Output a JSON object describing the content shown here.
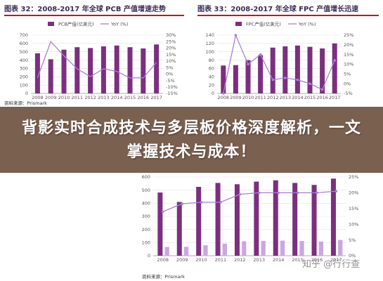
{
  "banner": {
    "text": "背影实时合成技术与多层板价格深度解析，一文掌握技术与成本！"
  },
  "watermark": "知乎 @行行查",
  "colors": {
    "bar": "#7b2f7f",
    "bar_light": "#c9a7e2",
    "line": "#a97fd6"
  },
  "chart_data": [
    {
      "id": "left",
      "type": "bar+line",
      "title": "图表 32：2008-2017 年全球 PCB 产值增速走势",
      "categories": [
        "2008",
        "2009",
        "2010",
        "2011",
        "2012",
        "2013",
        "2014",
        "2015",
        "2016",
        "2017"
      ],
      "series": [
        {
          "name": "PCB产值(亿美元)",
          "type": "bar",
          "axis": "left",
          "values": [
            482,
            410,
            525,
            555,
            545,
            565,
            575,
            555,
            540,
            588
          ]
        },
        {
          "name": "YoY (%)",
          "type": "line",
          "axis": "right",
          "values": [
            -3,
            25,
            14,
            4,
            -2,
            4,
            2,
            -3,
            -3,
            9
          ]
        }
      ],
      "ylim_left": [
        0,
        700
      ],
      "ylim_right": [
        -15,
        30
      ],
      "yticks_left": [
        "0",
        "100",
        "200",
        "300",
        "400",
        "500",
        "600",
        "700"
      ],
      "yticks_right": [
        "-15%",
        "-10%",
        "-5%",
        "0%",
        "5%",
        "10%",
        "15%",
        "20%",
        "25%",
        "30%"
      ],
      "source": "资料来源：Prismark"
    },
    {
      "id": "right",
      "type": "bar+line",
      "title": "图表 33：2008-2017 年全球 FPC 产值增长迅速",
      "categories": [
        "2008",
        "2009",
        "2010",
        "2011",
        "2012",
        "2013",
        "2014",
        "2015",
        "2016",
        "2017"
      ],
      "series": [
        {
          "name": "FPC产值(亿美元)",
          "type": "bar",
          "axis": "left",
          "values": [
            67,
            68,
            80,
            92,
            110,
            113,
            115,
            112,
            108,
            120
          ]
        },
        {
          "name": "YoY (%)",
          "type": "line",
          "axis": "right",
          "values": [
            -5,
            25,
            10,
            15,
            2,
            3,
            2,
            0,
            -3,
            12
          ]
        }
      ],
      "ylim_left": [
        0,
        140
      ],
      "ylim_right": [
        -5,
        25
      ],
      "yticks_left": [
        "0",
        "20",
        "40",
        "60",
        "80",
        "100",
        "120",
        "140"
      ],
      "yticks_right": [
        "-5%",
        "0%",
        "5%",
        "10%",
        "15%",
        "20%",
        "25%"
      ],
      "source": ""
    },
    {
      "id": "bottom",
      "type": "bar+line",
      "title": "",
      "categories": [
        "2008",
        "2009",
        "2010",
        "2011",
        "2012",
        "2013",
        "2014",
        "2015",
        "2016",
        "2017"
      ],
      "series": [
        {
          "name": "",
          "type": "bar",
          "axis": "left",
          "values": [
            482,
            410,
            525,
            555,
            545,
            565,
            575,
            555,
            540,
            588
          ]
        },
        {
          "name": "",
          "type": "bar_light",
          "axis": "left",
          "values": [
            67,
            68,
            80,
            92,
            110,
            113,
            115,
            112,
            108,
            120
          ]
        },
        {
          "name": "",
          "type": "line",
          "axis": "right",
          "values": [
            14,
            16.5,
            17,
            17,
            19.5,
            20,
            20,
            20,
            20,
            20.5
          ]
        }
      ],
      "ylim_left": [
        0,
        600
      ],
      "ylim_right": [
        0,
        25
      ],
      "yticks_left": [
        "0",
        "100",
        "200",
        "300",
        "400",
        "500",
        "600"
      ],
      "yticks_right": [
        "0%",
        "5%",
        "10%",
        "15%",
        "20%",
        "25%"
      ],
      "source": "资料来源：Prismark"
    }
  ]
}
